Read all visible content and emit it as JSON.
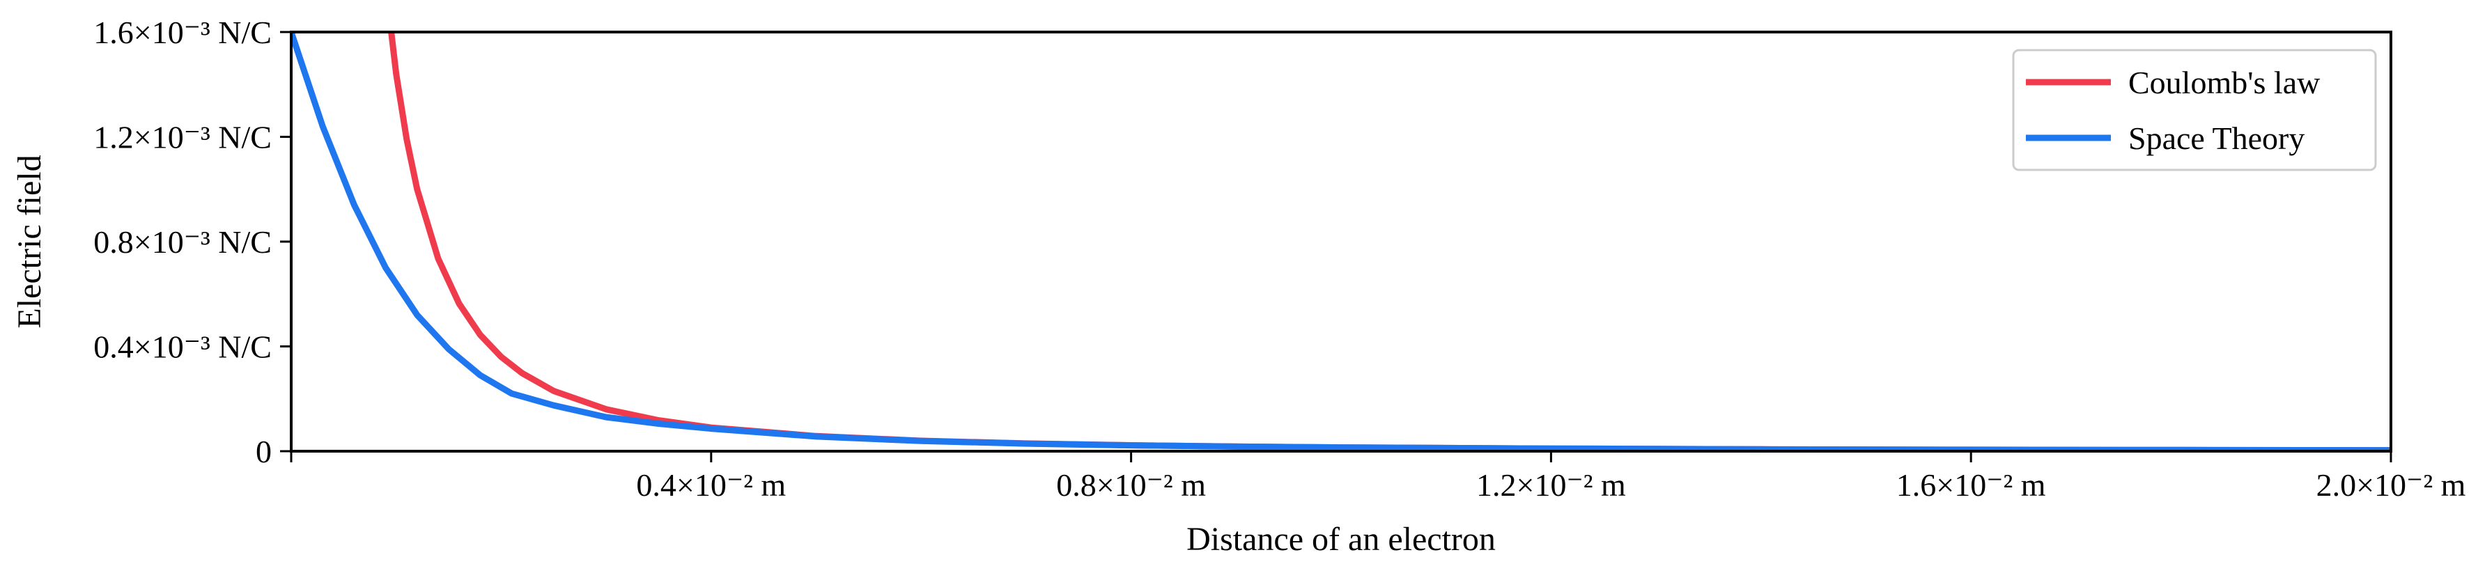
{
  "chart_data": {
    "type": "line",
    "xlabel": "Distance of an electron",
    "ylabel": "Electric field",
    "xlim": [
      0,
      0.02
    ],
    "ylim": [
      0,
      0.0016
    ],
    "x_ticks": [
      {
        "value": 0.004,
        "label": "0.4×10⁻² m"
      },
      {
        "value": 0.008,
        "label": "0.8×10⁻² m"
      },
      {
        "value": 0.012,
        "label": "1.2×10⁻² m"
      },
      {
        "value": 0.016,
        "label": "1.6×10⁻² m"
      },
      {
        "value": 0.02,
        "label": "2.0×10⁻² m"
      }
    ],
    "y_ticks": [
      {
        "value": 0,
        "label": "0"
      },
      {
        "value": 0.0004,
        "label": "0.4×10⁻³ N/C"
      },
      {
        "value": 0.0008,
        "label": "0.8×10⁻³ N/C"
      },
      {
        "value": 0.0012,
        "label": "1.2×10⁻³ N/C"
      },
      {
        "value": 0.0016,
        "label": "1.6×10⁻³ N/C"
      }
    ],
    "grid": false,
    "legend_position": "top-right",
    "series": [
      {
        "name": "Coulomb's law",
        "color": "#ef3b4c",
        "x": [
          0.0009,
          0.001,
          0.0011,
          0.0012,
          0.0014,
          0.0016,
          0.0018,
          0.002,
          0.0022,
          0.0025,
          0.003,
          0.0035,
          0.004,
          0.005,
          0.006,
          0.007,
          0.008,
          0.009,
          0.01,
          0.012,
          0.014,
          0.016,
          0.018,
          0.02
        ],
        "y": [
          0.00178,
          0.00144,
          0.00119,
          0.001,
          0.000735,
          0.000563,
          0.000444,
          0.00036,
          0.000298,
          0.00023,
          0.00016,
          0.000118,
          9e-05,
          5.76e-05,
          4e-05,
          2.94e-05,
          2.25e-05,
          1.78e-05,
          1.44e-05,
          1e-05,
          7.3e-06,
          5.6e-06,
          4.4e-06,
          3.6e-06
        ]
      },
      {
        "name": "Space Theory",
        "color": "#1f77f0",
        "x": [
          0,
          0.0003,
          0.0006,
          0.0009,
          0.0012,
          0.0015,
          0.0018,
          0.0021,
          0.0025,
          0.003,
          0.0035,
          0.004,
          0.005,
          0.006,
          0.007,
          0.008,
          0.009,
          0.01,
          0.012,
          0.014,
          0.016,
          0.018,
          0.02
        ],
        "y": [
          0.0016,
          0.00124,
          0.00094,
          0.0007,
          0.00052,
          0.00039,
          0.00029,
          0.00022,
          0.000175,
          0.00013,
          0.000105,
          8.6e-05,
          5.6e-05,
          3.9e-05,
          2.89e-05,
          2.22e-05,
          1.76e-05,
          1.43e-05,
          1e-05,
          7.3e-06,
          5.6e-06,
          4.4e-06,
          3.6e-06
        ]
      }
    ]
  }
}
